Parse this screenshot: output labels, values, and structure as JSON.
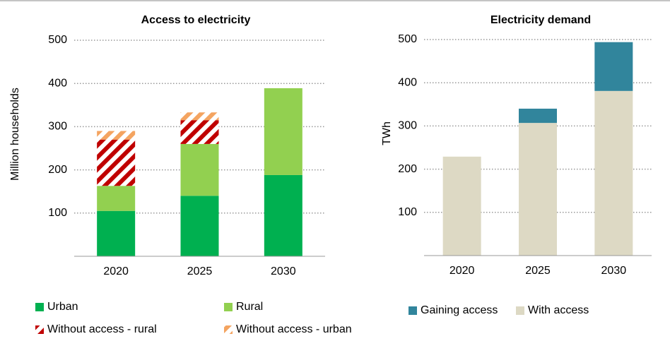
{
  "chart_data": [
    {
      "type": "bar",
      "stacked": true,
      "title": "Access to electricity",
      "y_label": "Million households",
      "categories": [
        "2020",
        "2025",
        "2030"
      ],
      "series": [
        {
          "name": "Urban",
          "color": "#00b050",
          "values": [
            105,
            140,
            188
          ]
        },
        {
          "name": "Rural",
          "color": "#92d050",
          "values": [
            58,
            120,
            201
          ]
        },
        {
          "name": "Without access - rural",
          "color": "#c00000",
          "hatch": true,
          "values": [
            107,
            55,
            0
          ]
        },
        {
          "name": "Without access - urban",
          "color": "#f4a460",
          "hatch": true,
          "values": [
            20,
            18,
            0
          ]
        }
      ],
      "ylim": [
        0,
        500
      ],
      "yticks": [
        100,
        200,
        300,
        400,
        500
      ],
      "grid": true
    },
    {
      "type": "bar",
      "stacked": true,
      "title": "Electricity demand",
      "y_label": "TWh",
      "categories": [
        "2020",
        "2025",
        "2030"
      ],
      "series": [
        {
          "name": "With access",
          "color": "#ddd9c4",
          "values": [
            229,
            307,
            381
          ]
        },
        {
          "name": "Gaining access",
          "color": "#31859c",
          "values": [
            0,
            33,
            113
          ]
        }
      ],
      "ylim": [
        0,
        500
      ],
      "yticks": [
        100,
        200,
        300,
        400,
        500
      ],
      "grid": true
    }
  ]
}
